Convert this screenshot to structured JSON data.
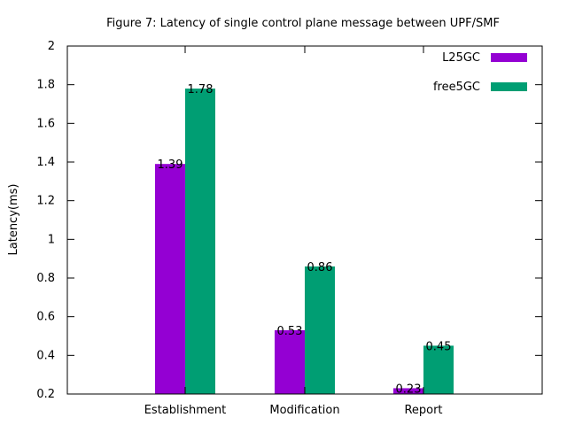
{
  "chart_data": {
    "type": "bar",
    "title": "Figure 7: Latency of single control plane message between UPF/SMF",
    "xlabel": "",
    "ylabel": "Latency(ms)",
    "categories": [
      "Establishment",
      "Modification",
      "Report"
    ],
    "ylim": [
      0.2,
      2
    ],
    "yticks": [
      "0.2",
      "0.4",
      "0.6",
      "0.8",
      "1",
      "1.2",
      "1.4",
      "1.6",
      "1.8",
      "2"
    ],
    "grid": false,
    "legend_position": "top-right",
    "series": [
      {
        "name": "L25GC",
        "color": "#9400d3",
        "values": [
          1.39,
          0.53,
          0.23
        ],
        "labels": [
          "1.39",
          "0.53",
          "0.23"
        ]
      },
      {
        "name": "free5GC",
        "color": "#009e73",
        "values": [
          1.78,
          0.86,
          0.45
        ],
        "labels": [
          "1.78",
          "0.86",
          "0.45"
        ]
      }
    ]
  }
}
